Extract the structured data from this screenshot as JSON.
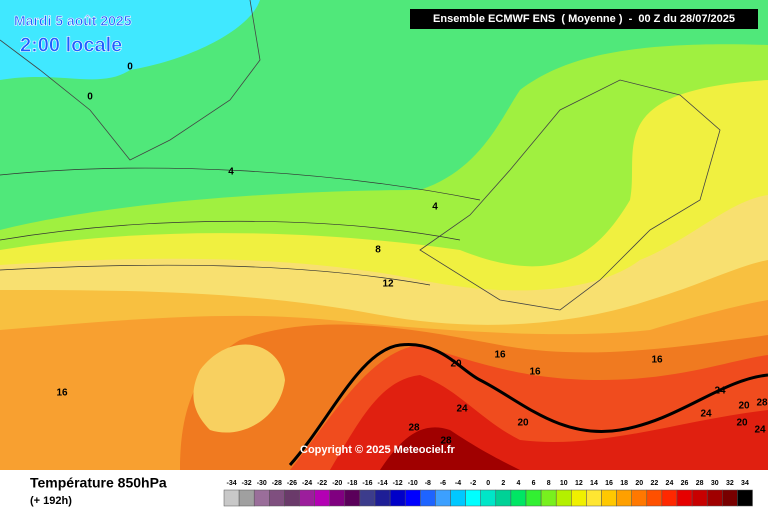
{
  "header": {
    "date": "Mardi 5 août 2025",
    "time": "2:00 locale",
    "model": "Ensemble ECMWF ENS  ( Moyenne )  -  00 Z du 28/07/2025"
  },
  "map": {
    "contour_labels": [
      0,
      0,
      4,
      4,
      8,
      12,
      16,
      20,
      16,
      16,
      16,
      24,
      20,
      28,
      28,
      24,
      24,
      20,
      28,
      20,
      24
    ],
    "copyright": "Copyright © 2025 Meteociel.fr"
  },
  "footer": {
    "title": "Température 850hPa",
    "subtitle": "(+ 192h)"
  },
  "legend": {
    "items": [
      {
        "label": -34,
        "color": "#c8c8c8"
      },
      {
        "label": -32,
        "color": "#a0a0a0"
      },
      {
        "label": -30,
        "color": "#9a6e9a"
      },
      {
        "label": -28,
        "color": "#7f4f7f"
      },
      {
        "label": -26,
        "color": "#6a3a6a"
      },
      {
        "label": -24,
        "color": "#9c1e9c"
      },
      {
        "label": -22,
        "color": "#b400b4"
      },
      {
        "label": -20,
        "color": "#800080"
      },
      {
        "label": -18,
        "color": "#5a005a"
      },
      {
        "label": -16,
        "color": "#3c3c8c"
      },
      {
        "label": -14,
        "color": "#1e1e96"
      },
      {
        "label": -12,
        "color": "#0000c8"
      },
      {
        "label": -10,
        "color": "#0000ff"
      },
      {
        "label": -8,
        "color": "#1e64ff"
      },
      {
        "label": -6,
        "color": "#3ca0ff"
      },
      {
        "label": -4,
        "color": "#00c8ff"
      },
      {
        "label": -2,
        "color": "#00ffff"
      },
      {
        "label": 0,
        "color": "#00e6c8"
      },
      {
        "label": 2,
        "color": "#00d296"
      },
      {
        "label": 4,
        "color": "#00e664"
      },
      {
        "label": 6,
        "color": "#32f032"
      },
      {
        "label": 8,
        "color": "#78f01e"
      },
      {
        "label": 10,
        "color": "#b4f000"
      },
      {
        "label": 12,
        "color": "#f0f000"
      },
      {
        "label": 14,
        "color": "#ffe632"
      },
      {
        "label": 16,
        "color": "#ffc800"
      },
      {
        "label": 18,
        "color": "#ffa000"
      },
      {
        "label": 20,
        "color": "#ff7800"
      },
      {
        "label": 22,
        "color": "#ff5000"
      },
      {
        "label": 24,
        "color": "#ff2800"
      },
      {
        "label": 26,
        "color": "#e60000"
      },
      {
        "label": 28,
        "color": "#c80000"
      },
      {
        "label": 30,
        "color": "#a00000"
      },
      {
        "label": 32,
        "color": "#780000"
      },
      {
        "label": 34,
        "color": "#000000"
      }
    ]
  }
}
